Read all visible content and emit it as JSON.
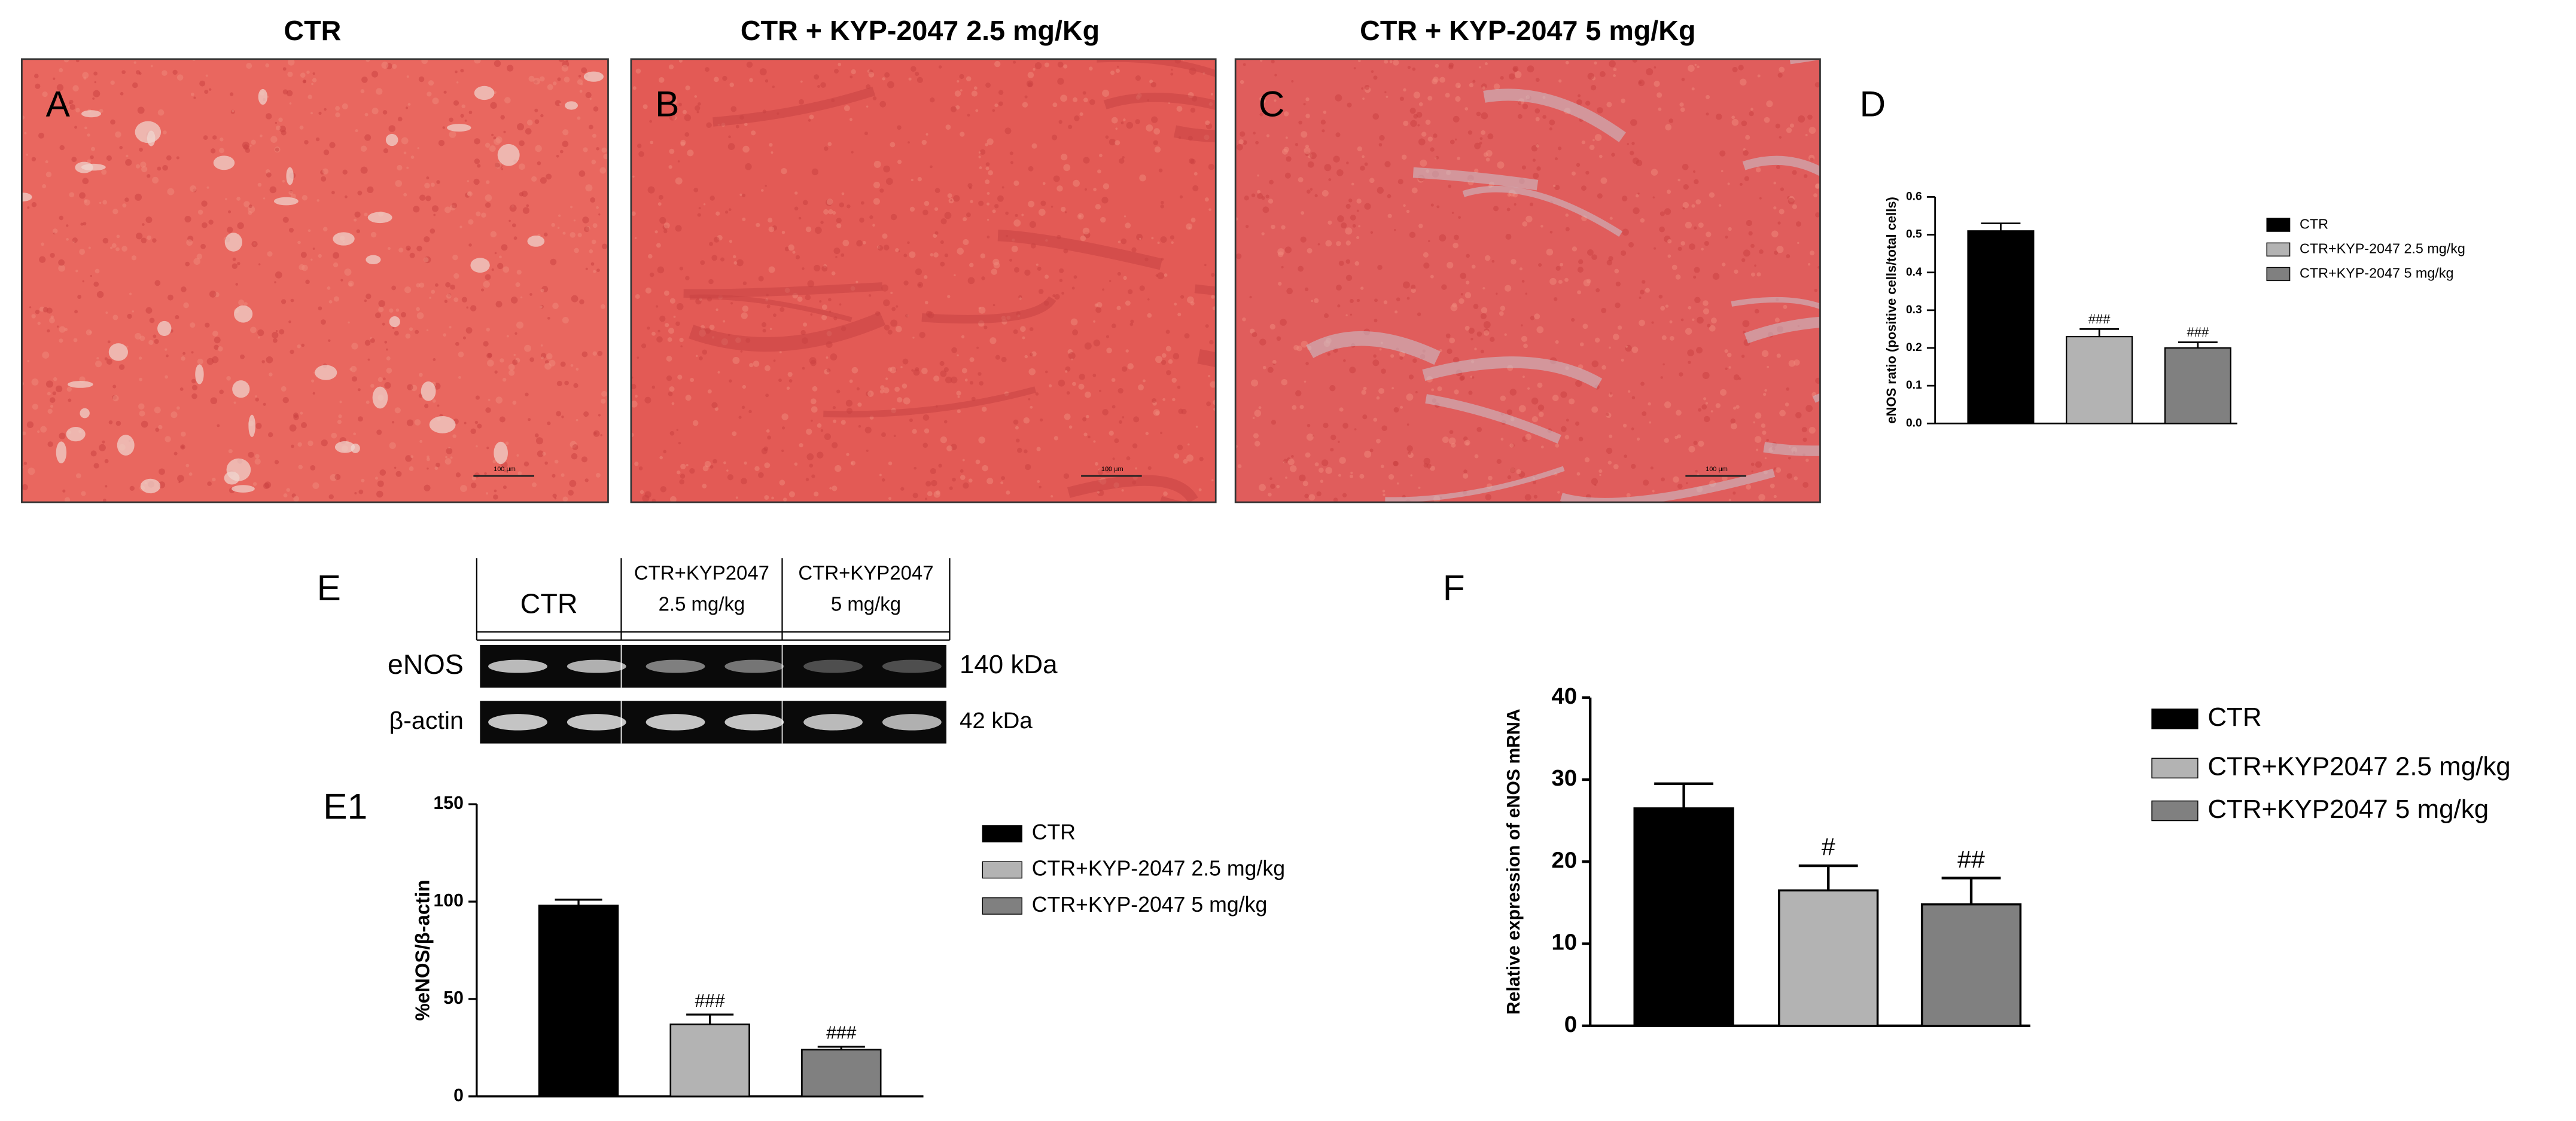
{
  "images": [
    {
      "panel": "A",
      "title": "CTR",
      "scale_bar": "100 μm"
    },
    {
      "panel": "B",
      "title": "CTR + KYP-2047  2.5 mg/Kg",
      "scale_bar": "100 μm"
    },
    {
      "panel": "C",
      "title": "CTR + KYP-2047  5 mg/Kg",
      "scale_bar": "100 μm"
    }
  ],
  "blot": {
    "panel": "E",
    "columns": [
      {
        "lines": [
          "CTR"
        ]
      },
      {
        "lines": [
          "CTR+KYP2047",
          "2.5 mg/kg"
        ]
      },
      {
        "lines": [
          "CTR+KYP2047",
          "5 mg/kg"
        ]
      }
    ],
    "rows": [
      {
        "name": "eNOS",
        "size": "140 kDa"
      },
      {
        "name": "β-actin",
        "size": "42 kDa"
      }
    ]
  },
  "chart_data": [
    {
      "type": "bar",
      "panel": "D",
      "y_label": "eNOS ratio (positive cells/total cells)",
      "ylim": [
        0,
        0.6
      ],
      "yticks": [
        {
          "value": 0,
          "label": "0.0"
        },
        0.1,
        0.2,
        0.3,
        0.4,
        0.5,
        0.6
      ],
      "legend": "right",
      "series": [
        {
          "name": "CTR",
          "color": "#000000",
          "values": [
            0.51
          ],
          "errors": [
            0.02
          ]
        },
        {
          "name": "CTR+KYP-2047 2.5 mg/kg",
          "color": "#b3b3b3",
          "values": [
            0.23
          ],
          "errors": [
            0.02
          ],
          "annotation": "###"
        },
        {
          "name": "CTR+KYP-2047 5 mg/kg",
          "color": "#808080",
          "values": [
            0.2
          ],
          "errors": [
            0.015
          ],
          "annotation": "###"
        }
      ]
    },
    {
      "type": "bar",
      "panel": "E1",
      "y_label": "%eNOS/β-actin",
      "ylim": [
        0,
        150
      ],
      "yticks": [
        0,
        50,
        100,
        150
      ],
      "legend": "right",
      "series": [
        {
          "name": "CTR",
          "color": "#000000",
          "values": [
            98
          ],
          "errors": [
            3
          ]
        },
        {
          "name": "CTR+KYP-2047 2.5 mg/kg",
          "color": "#b3b3b3",
          "values": [
            37
          ],
          "errors": [
            5
          ],
          "annotation": "###"
        },
        {
          "name": "CTR+KYP-2047 5 mg/kg",
          "color": "#808080",
          "values": [
            24
          ],
          "errors": [
            1.5
          ],
          "annotation": "###"
        }
      ]
    },
    {
      "type": "bar",
      "panel": "F",
      "y_label": "Relative expression of  eNOS mRNA",
      "ylim": [
        0,
        40
      ],
      "yticks": [
        0,
        10,
        20,
        30,
        40
      ],
      "legend": "right",
      "series": [
        {
          "name": "CTR",
          "color": "#000000",
          "values": [
            26.5
          ],
          "errors": [
            3
          ]
        },
        {
          "name": "CTR+KYP2047 2.5 mg/kg",
          "color": "#b3b3b3",
          "values": [
            16.5
          ],
          "errors": [
            3
          ],
          "annotation": "#"
        },
        {
          "name": "CTR+KYP2047 5 mg/kg",
          "color": "#808080",
          "values": [
            14.8
          ],
          "errors": [
            3.2
          ],
          "annotation": "##"
        }
      ]
    }
  ]
}
